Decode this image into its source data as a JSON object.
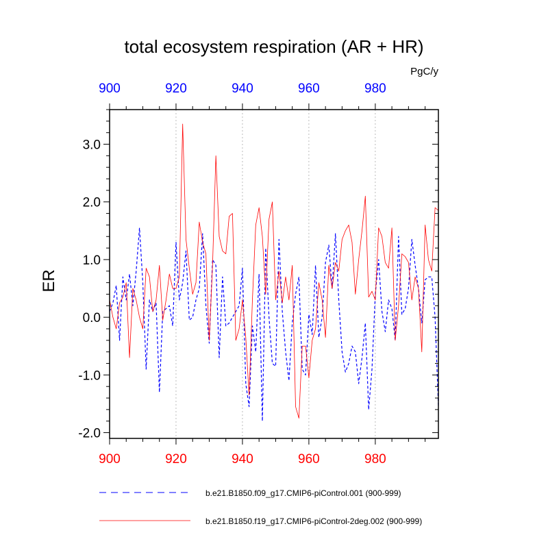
{
  "chart_data": {
    "type": "line",
    "title": "total ecosystem respiration (AR + HR)",
    "units": "PgC/y",
    "ylabel": "ER",
    "xlabel": "",
    "xlim": [
      900,
      999
    ],
    "ylim": [
      -2.1,
      3.6
    ],
    "bottom_ticks": [
      900,
      920,
      940,
      960,
      980
    ],
    "bottom_tick_labels": [
      "900",
      "920",
      "940",
      "960",
      "980"
    ],
    "top_ticks": [
      900,
      920,
      940,
      960,
      980
    ],
    "top_tick_labels": [
      "900",
      "920",
      "940",
      "960",
      "980"
    ],
    "y_ticks": [
      -2.0,
      -1.0,
      0.0,
      1.0,
      2.0,
      3.0
    ],
    "y_tick_labels": [
      "-2.0",
      "-1.0",
      "0.0",
      "1.0",
      "2.0",
      "3.0"
    ],
    "vertical_gridlines": [
      920,
      940,
      960,
      980
    ],
    "legend_position": "bottom",
    "colors": {
      "bottom_axis": "#ff0000",
      "top_axis": "#0000ff",
      "series_blue": "#0000ff",
      "series_red": "#ff0000",
      "grid": "#aaaaaa"
    },
    "x": [
      900,
      901,
      902,
      903,
      904,
      905,
      906,
      907,
      908,
      909,
      910,
      911,
      912,
      913,
      914,
      915,
      916,
      917,
      918,
      919,
      920,
      921,
      922,
      923,
      924,
      925,
      926,
      927,
      928,
      929,
      930,
      931,
      932,
      933,
      934,
      935,
      936,
      937,
      938,
      939,
      940,
      941,
      942,
      943,
      944,
      945,
      946,
      947,
      948,
      949,
      950,
      951,
      952,
      953,
      954,
      955,
      956,
      957,
      958,
      959,
      960,
      961,
      962,
      963,
      964,
      965,
      966,
      967,
      968,
      969,
      970,
      971,
      972,
      973,
      974,
      975,
      976,
      977,
      978,
      979,
      980,
      981,
      982,
      983,
      984,
      985,
      986,
      987,
      988,
      989,
      990,
      991,
      992,
      993,
      994,
      995,
      996,
      997,
      998,
      999
    ],
    "series": [
      {
        "name": "b.e21.B1850.f09_g17.CMIP6-piControl.001 (900-999)",
        "style": "dashed",
        "values": [
          0.1,
          0.25,
          0.55,
          -0.4,
          0.7,
          0.3,
          0.75,
          0.2,
          0.8,
          1.55,
          0.6,
          -0.9,
          0.3,
          0.1,
          0.25,
          -1.3,
          0.1,
          0.15,
          0.2,
          -0.15,
          1.3,
          0.3,
          0.6,
          1.15,
          -0.05,
          0.0,
          0.3,
          0.5,
          1.45,
          0.2,
          -0.45,
          1.0,
          0.9,
          -0.7,
          0.7,
          -0.15,
          -0.1,
          0.0,
          0.1,
          0.2,
          0.85,
          -1.15,
          -1.55,
          -0.15,
          -0.6,
          0.75,
          -1.8,
          1.2,
          0.0,
          -0.8,
          -0.85,
          1.35,
          0.1,
          -0.6,
          -1.1,
          -0.1,
          0.4,
          0.7,
          -0.9,
          -1.0,
          0.05,
          -0.3,
          0.9,
          -0.35,
          0.0,
          0.95,
          1.25,
          0.5,
          1.45,
          0.3,
          -0.6,
          -0.95,
          -0.8,
          -0.5,
          -0.6,
          -1.15,
          -0.7,
          -0.1,
          -1.6,
          -0.9,
          0.4,
          1.0,
          0.1,
          -0.25,
          0.3,
          0.15,
          -0.4,
          1.4,
          0.05,
          0.15,
          0.5,
          1.35,
          0.9,
          0.5,
          -0.1,
          0.65,
          0.7,
          0.7,
          0.0,
          -1.55
        ]
      },
      {
        "name": "b.e21.B1850.f19_g17.CMIP6-piControl-2deg.002 (900-999)",
        "style": "solid",
        "values": [
          0.3,
          0.0,
          -0.2,
          0.25,
          0.35,
          0.6,
          -0.7,
          0.5,
          0.3,
          0.0,
          -0.2,
          0.85,
          0.7,
          0.1,
          0.3,
          0.9,
          -0.05,
          0.3,
          0.75,
          0.5,
          0.5,
          0.7,
          3.35,
          1.35,
          0.85,
          0.4,
          0.6,
          1.65,
          1.3,
          1.1,
          -0.4,
          0.9,
          2.8,
          1.4,
          1.15,
          1.1,
          1.75,
          1.8,
          -0.4,
          -0.2,
          0.3,
          -0.35,
          -1.35,
          0.3,
          1.6,
          1.9,
          1.4,
          0.4,
          1.7,
          2.0,
          0.3,
          0.8,
          0.25,
          0.7,
          0.3,
          0.9,
          -1.55,
          -1.75,
          -0.5,
          -0.5,
          -1.05,
          -0.4,
          -0.2,
          0.6,
          0.3,
          -0.35,
          0.9,
          0.5,
          0.95,
          0.8,
          1.35,
          1.5,
          1.6,
          1.3,
          0.4,
          1.0,
          1.5,
          2.1,
          0.35,
          0.45,
          0.3,
          1.55,
          1.4,
          0.95,
          0.85,
          1.55,
          -0.4,
          0.2,
          1.1,
          1.05,
          0.95,
          0.3,
          0.7,
          0.5,
          -0.6,
          1.6,
          1.0,
          0.8,
          1.9,
          1.85
        ]
      }
    ]
  }
}
